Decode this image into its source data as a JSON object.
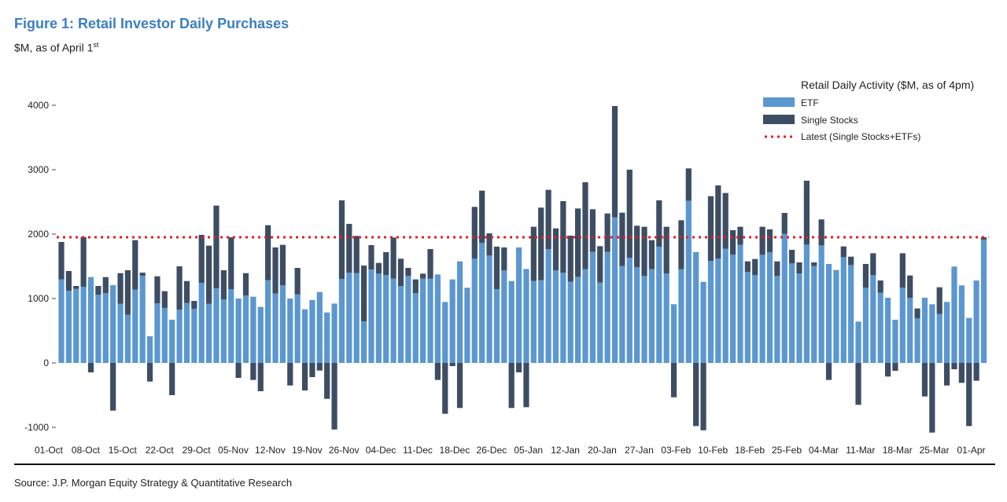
{
  "header": {
    "title": "Figure 1: Retail Investor Daily Purchases",
    "subtitle": "$M, as of April 1",
    "subtitle_sup": "st"
  },
  "footer": {
    "source": "Source: J.P. Morgan Equity Strategy & Quantitative Research"
  },
  "colors": {
    "etf": "#5b97d0",
    "single_stocks": "#3d4d63",
    "latest": "#e0201f",
    "title": "#3b7fc0"
  },
  "chart_data": {
    "type": "bar",
    "stacked": true,
    "title": "Figure 1: Retail Investor Daily Purchases",
    "ylabel": "$M",
    "ylim": [
      -1100,
      4100
    ],
    "yticks": [
      4000,
      3000,
      2000,
      1000,
      0,
      -1000
    ],
    "ytick_labels": [
      "4000",
      "3000",
      "2000",
      "1000",
      "0",
      "-1000"
    ],
    "grid": false,
    "legend": {
      "placement": "top-right",
      "title": "Retail Daily Activity ($M, as of 4pm)",
      "entries": [
        "ETF",
        "Single Stocks",
        "Latest (Single Stocks+ETFs)"
      ]
    },
    "xtick_labels": [
      "01-Oct",
      "08-Oct",
      "15-Oct",
      "22-Oct",
      "29-Oct",
      "05-Nov",
      "12-Nov",
      "19-Nov",
      "26-Nov",
      "04-Dec",
      "11-Dec",
      "18-Dec",
      "26-Dec",
      "05-Jan",
      "12-Jan",
      "20-Jan",
      "27-Jan",
      "03-Feb",
      "10-Feb",
      "18-Feb",
      "25-Feb",
      "04-Mar",
      "11-Mar",
      "18-Mar",
      "25-Mar",
      "01-Apr"
    ],
    "xtick_every_n_days": 5,
    "latest_value": 1951,
    "series": [
      {
        "name": "ETF",
        "values": [
          1296,
          1122,
          1150,
          1183,
          1333,
          1061,
          1085,
          1207,
          918,
          748,
          1138,
          1353,
          414,
          927,
          854,
          671,
          829,
          931,
          841,
          1244,
          918,
          1159,
          988,
          1146,
          1000,
          1049,
          1028,
          870,
          1284,
          1077,
          1207,
          1000,
          1065,
          833,
          976,
          1101,
          784,
          922,
          1305,
          1402,
          1394,
          646,
          1451,
          1390,
          1366,
          1309,
          1195,
          1350,
          1085,
          1309,
          1309,
          1374,
          947,
          1297,
          1577,
          1154,
          1618,
          1862,
          1667,
          1146,
          1439,
          1272,
          1793,
          1459,
          1272,
          1285,
          1768,
          1439,
          1402,
          1260,
          1337,
          1455,
          1724,
          1248,
          1724,
          2260,
          1504,
          1634,
          1488,
          1350,
          1455,
          1805,
          1390,
          911,
          1455,
          2516,
          1720,
          1260,
          1585,
          1622,
          1772,
          1683,
          1833,
          1415,
          1366,
          1679,
          1720,
          1350,
          2004,
          1545,
          1390,
          1837,
          1504,
          1825,
          1537,
          1443,
          1642,
          1520,
          642,
          1167,
          1362,
          1089,
          1012,
          671,
          1167,
          1012,
          695,
          1012,
          911,
          760,
          947,
          1496,
          1203,
          699,
          1280,
          1915
        ]
      },
      {
        "name": "Single Stocks",
        "values": [
          582,
          305,
          45,
          772,
          -146,
          134,
          248,
          -740,
          476,
          691,
          768,
          49,
          -289,
          418,
          260,
          -500,
          671,
          341,
          122,
          744,
          903,
          1284,
          451,
          805,
          -232,
          345,
          -264,
          -439,
          854,
          716,
          626,
          -350,
          411,
          -427,
          -220,
          -118,
          -557,
          -1033,
          1219,
          757,
          578,
          866,
          378,
          163,
          354,
          638,
          423,
          126,
          212,
          77,
          459,
          -264,
          -789,
          -49,
          -699,
          10,
          805,
          813,
          345,
          659,
          354,
          -699,
          -146,
          -687,
          842,
          1126,
          919,
          650,
          1110,
          716,
          1061,
          1350,
          662,
          565,
          597,
          1728,
          829,
          1366,
          642,
          764,
          451,
          719,
          724,
          -533,
          760,
          504,
          -980,
          -1045,
          1004,
          1134,
          866,
          378,
          281,
          162,
          248,
          435,
          353,
          227,
          325,
          211,
          171,
          992,
          57,
          403,
          -264,
          0,
          167,
          130,
          -650,
          370,
          341,
          191,
          -211,
          -122,
          536,
          346,
          151,
          -520,
          -1081,
          415,
          -350,
          -98,
          -309,
          -980,
          -276,
          36
        ]
      }
    ]
  }
}
